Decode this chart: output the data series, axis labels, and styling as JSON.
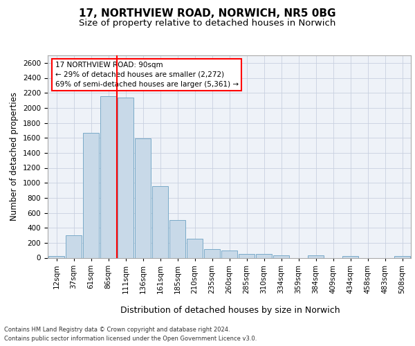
{
  "title1": "17, NORTHVIEW ROAD, NORWICH, NR5 0BG",
  "title2": "Size of property relative to detached houses in Norwich",
  "xlabel": "Distribution of detached houses by size in Norwich",
  "ylabel": "Number of detached properties",
  "categories": [
    "12sqm",
    "37sqm",
    "61sqm",
    "86sqm",
    "111sqm",
    "136sqm",
    "161sqm",
    "185sqm",
    "210sqm",
    "235sqm",
    "260sqm",
    "285sqm",
    "310sqm",
    "334sqm",
    "359sqm",
    "384sqm",
    "409sqm",
    "434sqm",
    "458sqm",
    "483sqm",
    "508sqm"
  ],
  "values": [
    25,
    300,
    1670,
    2160,
    2140,
    1590,
    960,
    500,
    250,
    120,
    100,
    50,
    50,
    35,
    0,
    35,
    0,
    25,
    0,
    0,
    25
  ],
  "bar_color": "#c8d9e8",
  "bar_edge_color": "#7aaac8",
  "vline_color": "red",
  "vline_pos": 3.5,
  "annotation_text": "17 NORTHVIEW ROAD: 90sqm\n← 29% of detached houses are smaller (2,272)\n69% of semi-detached houses are larger (5,361) →",
  "annotation_box_color": "white",
  "annotation_box_edge": "red",
  "ylim": [
    0,
    2700
  ],
  "yticks": [
    0,
    200,
    400,
    600,
    800,
    1000,
    1200,
    1400,
    1600,
    1800,
    2000,
    2200,
    2400,
    2600
  ],
  "footer1": "Contains HM Land Registry data © Crown copyright and database right 2024.",
  "footer2": "Contains public sector information licensed under the Open Government Licence v3.0.",
  "bg_color": "#eef2f8",
  "grid_color": "#c8d0e0",
  "title1_fontsize": 11,
  "title2_fontsize": 9.5,
  "tick_fontsize": 7.5,
  "ylabel_fontsize": 8.5,
  "xlabel_fontsize": 9,
  "footer_fontsize": 6,
  "annotation_fontsize": 7.5
}
